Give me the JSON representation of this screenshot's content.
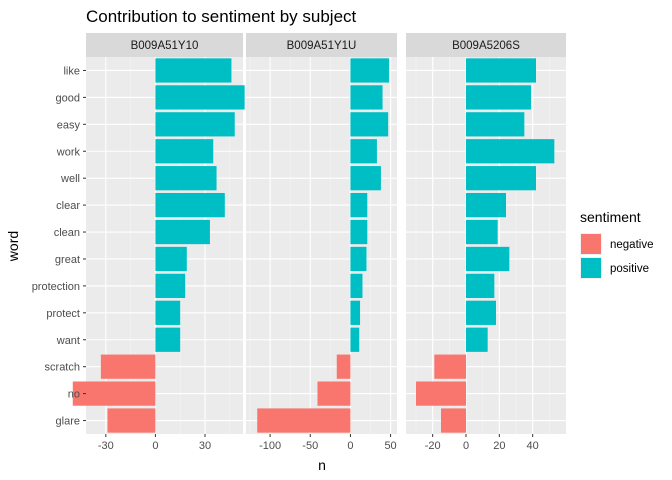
{
  "chart_data": {
    "type": "bar",
    "orientation": "horizontal",
    "title": "Contribution to sentiment by subject",
    "xlabel": "n",
    "ylabel": "word",
    "categories": [
      "like",
      "good",
      "easy",
      "work",
      "well",
      "clear",
      "clean",
      "great",
      "protection",
      "protect",
      "want",
      "scratch",
      "no",
      "glare"
    ],
    "legend": {
      "title": "sentiment",
      "position": "right",
      "entries": [
        {
          "label": "negative",
          "color": "#F8766D"
        },
        {
          "label": "positive",
          "color": "#00BFC4"
        }
      ]
    },
    "grid": true,
    "panels": [
      {
        "subject": "B009A51Y10",
        "xlim": [
          -42,
          53
        ],
        "xticks": [
          -30,
          0,
          30
        ],
        "xtick_labels": [
          "-30",
          "0",
          "30"
        ],
        "values": [
          46,
          54,
          48,
          35,
          37,
          42,
          33,
          19,
          18,
          15,
          15,
          -33,
          -50,
          -29
        ],
        "sentiment": [
          "positive",
          "positive",
          "positive",
          "positive",
          "positive",
          "positive",
          "positive",
          "positive",
          "positive",
          "positive",
          "positive",
          "negative",
          "negative",
          "negative"
        ]
      },
      {
        "subject": "B009A51Y1U",
        "xlim": [
          -130,
          58
        ],
        "xticks": [
          -100,
          -50,
          0,
          50
        ],
        "xtick_labels": [
          "-100",
          "-50",
          "0",
          "50"
        ],
        "values": [
          48,
          40,
          47,
          33,
          38,
          21,
          21,
          20,
          15,
          12,
          11,
          -17,
          -41,
          -116
        ],
        "sentiment": [
          "positive",
          "positive",
          "positive",
          "positive",
          "positive",
          "positive",
          "positive",
          "positive",
          "positive",
          "positive",
          "positive",
          "negative",
          "negative",
          "negative"
        ]
      },
      {
        "subject": "B009A5206S",
        "xlim": [
          -36,
          60
        ],
        "xticks": [
          -20,
          0,
          20,
          40
        ],
        "xtick_labels": [
          "-20",
          "0",
          "20",
          "40"
        ],
        "values": [
          42,
          39,
          35,
          53,
          42,
          24,
          19,
          26,
          17,
          18,
          13,
          -19,
          -30,
          -15
        ],
        "sentiment": [
          "positive",
          "positive",
          "positive",
          "positive",
          "positive",
          "positive",
          "positive",
          "positive",
          "positive",
          "positive",
          "positive",
          "negative",
          "negative",
          "negative"
        ]
      }
    ]
  }
}
